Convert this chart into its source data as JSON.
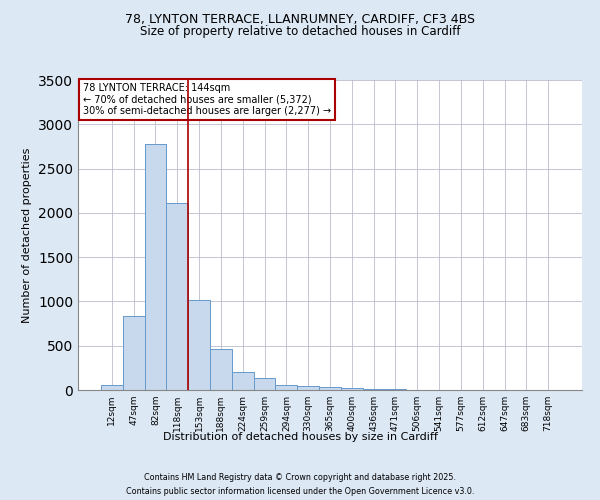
{
  "title1": "78, LYNTON TERRACE, LLANRUMNEY, CARDIFF, CF3 4BS",
  "title2": "Size of property relative to detached houses in Cardiff",
  "xlabel": "Distribution of detached houses by size in Cardiff",
  "ylabel": "Number of detached properties",
  "categories": [
    "12sqm",
    "47sqm",
    "82sqm",
    "118sqm",
    "153sqm",
    "188sqm",
    "224sqm",
    "259sqm",
    "294sqm",
    "330sqm",
    "365sqm",
    "400sqm",
    "436sqm",
    "471sqm",
    "506sqm",
    "541sqm",
    "577sqm",
    "612sqm",
    "647sqm",
    "683sqm",
    "718sqm"
  ],
  "values": [
    55,
    840,
    2780,
    2110,
    1020,
    460,
    205,
    140,
    55,
    40,
    30,
    25,
    15,
    10,
    5,
    3,
    2,
    1,
    1,
    1,
    0
  ],
  "bar_color": "#c8d9ed",
  "bar_edge_color": "#6699cc",
  "vline_x": 3.5,
  "vline_color": "#aa0000",
  "annotation_text": "78 LYNTON TERRACE: 144sqm\n← 70% of detached houses are smaller (5,372)\n30% of semi-detached houses are larger (2,277) →",
  "annotation_box_color": "#ffffff",
  "annotation_box_edge": "#aa0000",
  "ylim": [
    0,
    3500
  ],
  "footer1": "Contains HM Land Registry data © Crown copyright and database right 2025.",
  "footer2": "Contains public sector information licensed under the Open Government Licence v3.0.",
  "bg_color": "#dde8f5",
  "plot_bg_color": "#ffffff"
}
